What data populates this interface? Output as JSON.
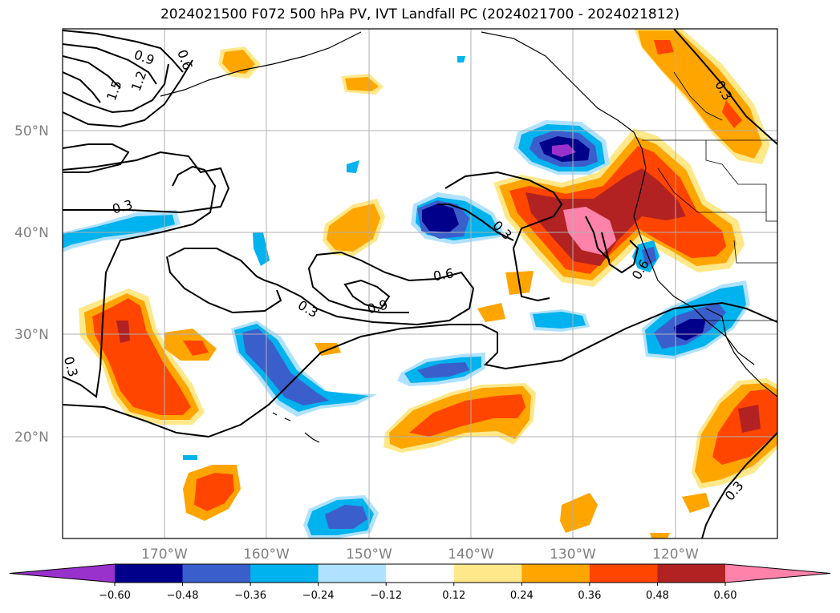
{
  "title": "2024021500 F072 500 hPa PV, IVT Landfall PC (2024021700 - 2024021812)",
  "latitude_labels": [
    "50°N",
    "40°N",
    "30°N",
    "20°N"
  ],
  "longitude_labels": [
    "170°W",
    "160°W",
    "150°W",
    "140°W",
    "130°W",
    "120°W"
  ],
  "colorbar": {
    "ticks": [
      "−0.60",
      "−0.48",
      "−0.36",
      "−0.24",
      "−0.12",
      "0.12",
      "0.24",
      "0.36",
      "0.48",
      "0.60"
    ],
    "colors": [
      "#9932cc",
      "#00008b",
      "#3a5fcd",
      "#00b2ee",
      "#b0e2ff",
      "#ffffff",
      "#ffe88a",
      "#ffa500",
      "#ff4500",
      "#b22222",
      "#ff82ab"
    ]
  },
  "contour_labels": [
    "0.9",
    "0.6",
    "1.5",
    "1.2",
    "0.3",
    "0.3",
    "0.6",
    "0.9",
    "0.3",
    "0.3",
    "0.6",
    "0.3",
    "0.3"
  ],
  "colors": {
    "coastline": "#000000",
    "grid": "#b0b0b0",
    "contour": "#000000"
  }
}
